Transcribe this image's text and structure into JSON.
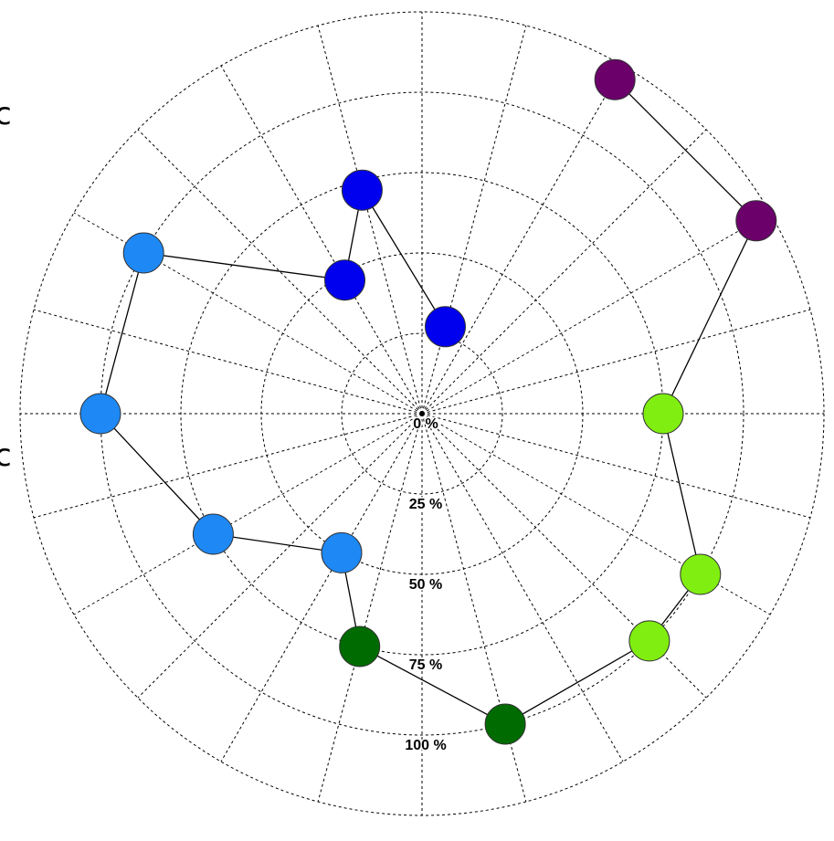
{
  "chart_data": {
    "type": "polar-scatter",
    "title": "",
    "angle_divisions": 24,
    "radial_range": [
      0,
      100
    ],
    "radial_ticks": [
      "0 %",
      "25 %",
      "50 %",
      "75 %",
      "100 %"
    ],
    "grid": true,
    "connected": true,
    "series": [
      {
        "color": "#0000ee",
        "points": [
          {
            "angle_deg": 75,
            "r": 28
          },
          {
            "angle_deg": 105,
            "r": 72
          },
          {
            "angle_deg": 120,
            "r": 48
          }
        ]
      },
      {
        "color": "#1e88f5",
        "points": [
          {
            "angle_deg": 150,
            "r": 100
          },
          {
            "angle_deg": 180,
            "r": 100
          },
          {
            "angle_deg": 210,
            "r": 75
          },
          {
            "angle_deg": 240,
            "r": 50
          }
        ]
      },
      {
        "color": "#006b00",
        "points": [
          {
            "angle_deg": 255,
            "r": 75
          },
          {
            "angle_deg": 285,
            "r": 100
          }
        ]
      },
      {
        "color": "#80ee10",
        "points": [
          {
            "angle_deg": 315,
            "r": 100
          },
          {
            "angle_deg": 330,
            "r": 100
          },
          {
            "angle_deg": 360,
            "r": 75
          }
        ]
      },
      {
        "color": "#6b006b",
        "points": [
          {
            "angle_deg": 30,
            "r": 120
          },
          {
            "angle_deg": 60,
            "r": 120
          }
        ]
      }
    ]
  },
  "edge_glyphs": [
    "c",
    "c"
  ]
}
